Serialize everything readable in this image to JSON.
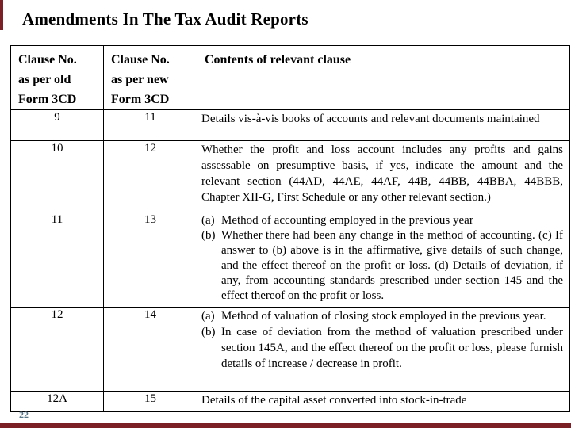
{
  "slide": {
    "title": "Amendments In The Tax Audit Reports",
    "page_number": "22",
    "accent_color": "#7b2024",
    "page_number_color": "#567589"
  },
  "table": {
    "headers": [
      {
        "lines": [
          "Clause No.",
          "as per old",
          "Form 3CD"
        ]
      },
      {
        "lines": [
          "Clause No.",
          "as per new",
          "Form 3CD"
        ]
      },
      {
        "lines": [
          "Contents of relevant clause"
        ]
      }
    ],
    "rows": [
      {
        "old": "9",
        "new": "11",
        "content": "Details vis-à-vis books of accounts and relevant documents maintained"
      },
      {
        "old": "10",
        "new": "12",
        "content": "Whether the profit and loss account includes any profits and gains assessable on presumptive basis, if yes, indicate the amount and the relevant section (44AD, 44AE, 44AF, 44B, 44BB, 44BBA, 44BBB, Chapter XII-G, First Schedule or any other relevant section.)"
      },
      {
        "old": "11",
        "new": "13",
        "items": [
          {
            "marker": "(a)",
            "text": "Method of accounting employed in the previous year"
          },
          {
            "marker": "(b)",
            "text": "Whether there had been any change in the method of accounting. (c) If answer to (b) above is in the affirmative, give details of such change, and the effect thereof on the profit or loss. (d) Details of deviation, if any, from accounting standards prescribed under section 145 and the effect thereof on the profit or loss."
          }
        ]
      },
      {
        "old": "12",
        "new": "14",
        "items": [
          {
            "marker": "(a)",
            "text": "Method of valuation of closing stock employed in the previous year."
          },
          {
            "marker": "(b)",
            "text": "In case of deviation from the method of valuation prescribed under section 145A, and the effect thereof on the profit or loss, please furnish details of increase / decrease in profit."
          }
        ]
      },
      {
        "old": "12A",
        "new": "15",
        "content": "Details of the capital asset converted into stock-in-trade"
      }
    ]
  }
}
